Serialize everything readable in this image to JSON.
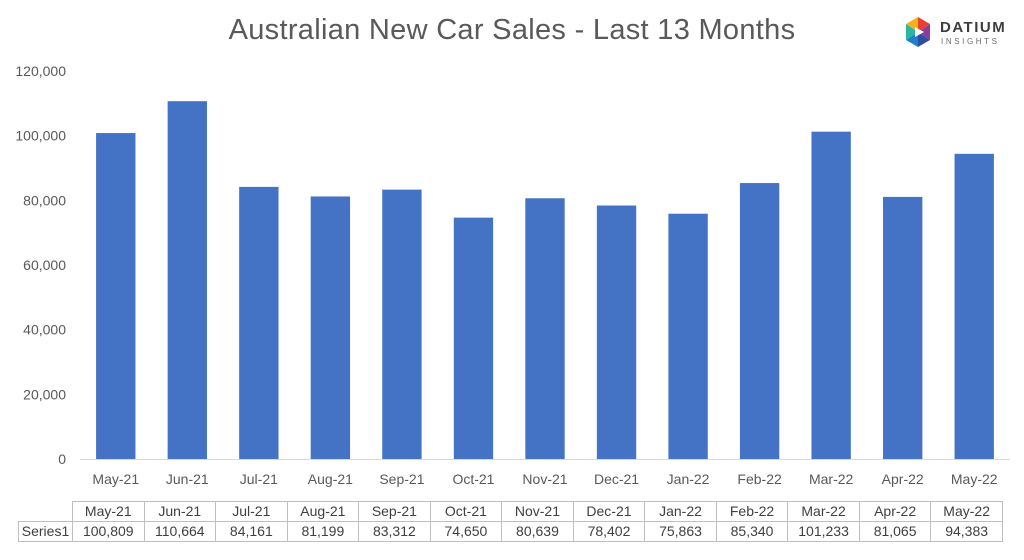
{
  "chart_data": {
    "type": "bar",
    "title": "Australian New Car Sales  - Last 13 Months",
    "categories": [
      "May-21",
      "Jun-21",
      "Jul-21",
      "Aug-21",
      "Sep-21",
      "Oct-21",
      "Nov-21",
      "Dec-21",
      "Jan-22",
      "Feb-22",
      "Mar-22",
      "Apr-22",
      "May-22"
    ],
    "series": [
      {
        "name": "Series1",
        "values": [
          100809,
          110664,
          84161,
          81199,
          83312,
          74650,
          80639,
          78402,
          75863,
          85340,
          101233,
          81065,
          94383
        ],
        "value_labels": [
          "100,809",
          "110,664",
          "84,161",
          "81,199",
          "83,312",
          "74,650",
          "80,639",
          "78,402",
          "75,863",
          "85,340",
          "101,233",
          "81,065",
          "94,383"
        ],
        "color": "#4472C4"
      }
    ],
    "yticks": [
      "0",
      "20,000",
      "40,000",
      "60,000",
      "80,000",
      "100,000",
      "120,000"
    ],
    "ylim": [
      0,
      120000
    ],
    "grid": false,
    "legend": "none",
    "data_table": true
  },
  "logo": {
    "brand": "DATIUM",
    "sub": "INSIGHTS"
  }
}
